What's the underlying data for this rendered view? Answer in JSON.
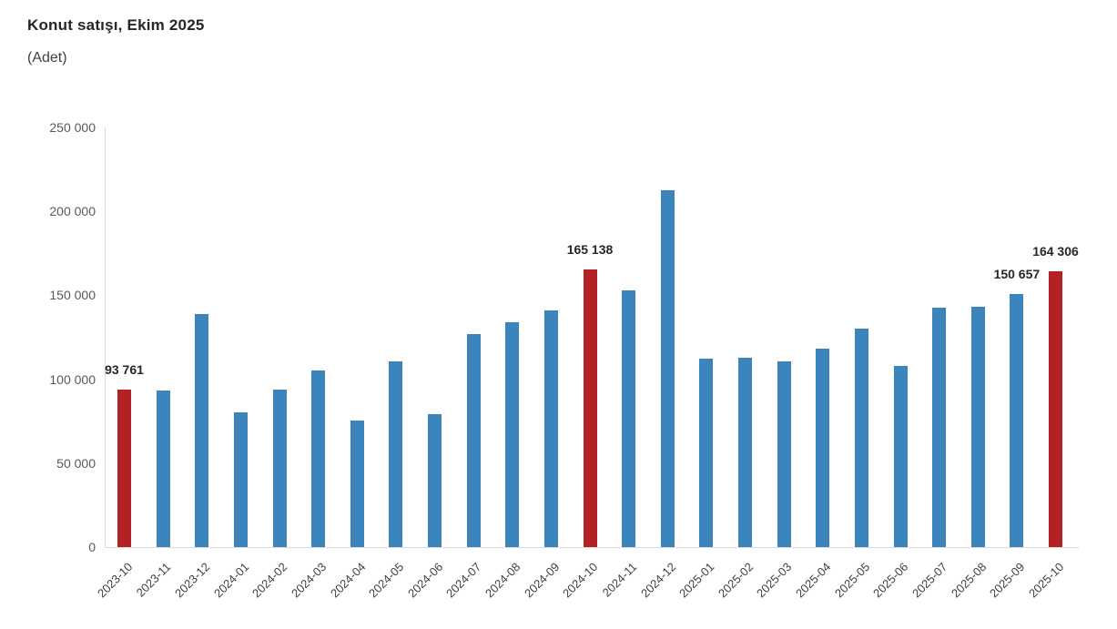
{
  "header": {
    "title": "Konut satışı, Ekim 2025",
    "subtitle": "(Adet)"
  },
  "chart_data": {
    "type": "bar",
    "title": "Konut satışı, Ekim 2025",
    "unit_label": "(Adet)",
    "categories": [
      "2023-10",
      "2023-11",
      "2023-12",
      "2024-01",
      "2024-02",
      "2024-03",
      "2024-04",
      "2024-05",
      "2024-06",
      "2024-07",
      "2024-08",
      "2024-09",
      "2024-10",
      "2024-11",
      "2024-12",
      "2025-01",
      "2025-02",
      "2025-03",
      "2025-04",
      "2025-05",
      "2025-06",
      "2025-07",
      "2025-08",
      "2025-09",
      "2025-10"
    ],
    "values": [
      93761,
      93514,
      138577,
      80308,
      93902,
      105476,
      75569,
      110588,
      79313,
      127088,
      134155,
      140919,
      165138,
      153014,
      212637,
      112173,
      112818,
      110795,
      118359,
      130025,
      107723,
      142858,
      143319,
      150657,
      164306
    ],
    "highlighted_categories": [
      "2023-10",
      "2024-10",
      "2025-10"
    ],
    "data_labels": [
      {
        "category": "2023-10",
        "label": "93 761"
      },
      {
        "category": "2024-10",
        "label": "165 138"
      },
      {
        "category": "2025-09",
        "label": "150 657"
      },
      {
        "category": "2025-10",
        "label": "164 306"
      }
    ],
    "y_axis": {
      "ticks": [
        "0",
        "50 000",
        "100 000",
        "150 000",
        "200 000",
        "250 000"
      ],
      "min": 0,
      "max": 250000
    },
    "xlabel": "",
    "ylabel": "",
    "grid": false,
    "legend": false,
    "colors": {
      "bar": "#3B84BC",
      "highlight": "#B32124",
      "axis_line": "#D9D9D9",
      "tick_label": "#595959",
      "category_label": "#404040",
      "title_text": "#262626"
    }
  }
}
